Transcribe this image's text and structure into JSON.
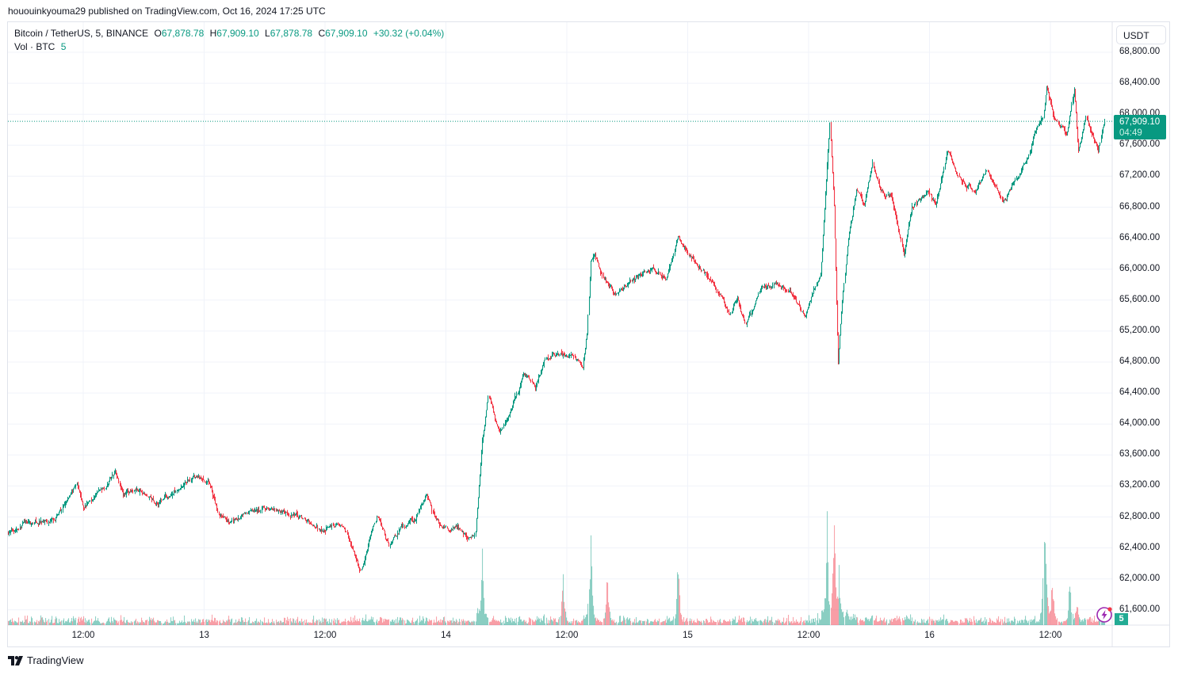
{
  "publisher_line": "hououinkyouma29 published on TradingView.com, Oct 16, 2024 17:25 UTC",
  "legend": {
    "symbol": "Bitcoin / TetherUS, 5, BINANCE",
    "open_prefix": "O",
    "open": "67,878.78",
    "high_prefix": "H",
    "high": "67,909.10",
    "low_prefix": "L",
    "low": "67,878.78",
    "close_prefix": "C",
    "close": "67,909.10",
    "change": "+30.32 (+0.04%)",
    "volume_label": "Vol · BTC",
    "volume_value": "5"
  },
  "currency_button": "USDT",
  "last_price": {
    "price": "67,909.10",
    "countdown": "04:49"
  },
  "volume_badge": "5",
  "footer_logo": "TradingView",
  "colors": {
    "up": "#089981",
    "down": "#f23645",
    "accent": "#089981",
    "grid": "#f0f3fa"
  },
  "icons": {
    "alert": "lightning-bolt-icon",
    "logo": "tradingview-logo-icon"
  },
  "chart_data": {
    "type": "candlestick",
    "interval_minutes": 5,
    "y_ticks": [
      "68,800.00",
      "68,400.00",
      "68,000.00",
      "67,600.00",
      "67,200.00",
      "66,800.00",
      "66,400.00",
      "66,000.00",
      "65,600.00",
      "65,200.00",
      "64,800.00",
      "64,400.00",
      "64,000.00",
      "63,600.00",
      "63,200.00",
      "62,800.00",
      "62,400.00",
      "62,000.00",
      "61,600.00"
    ],
    "ylim": [
      61600,
      68800
    ],
    "x_ticks": [
      {
        "label": "12:00",
        "time": "10-12 12:00"
      },
      {
        "label": "13",
        "time": "10-13 00:00"
      },
      {
        "label": "12:00",
        "time": "10-13 12:00"
      },
      {
        "label": "14",
        "time": "10-14 00:00"
      },
      {
        "label": "12:00",
        "time": "10-14 12:00"
      },
      {
        "label": "15",
        "time": "10-15 00:00"
      },
      {
        "label": "12:00",
        "time": "10-15 12:00"
      },
      {
        "label": "16",
        "time": "10-16 00:00"
      },
      {
        "label": "12:00",
        "time": "10-16 12:00"
      }
    ],
    "last_price": 67909.1,
    "price_path": [
      [
        "10-12 04:30",
        62600
      ],
      [
        "10-12 06:05",
        62723
      ],
      [
        "10-12 08:30",
        62723
      ],
      [
        "10-12 10:00",
        62928
      ],
      [
        "10-12 11:20",
        63214
      ],
      [
        "10-12 12:00",
        62928
      ],
      [
        "10-12 13:10",
        63081
      ],
      [
        "10-12 14:20",
        63235
      ],
      [
        "10-12 15:10",
        63419
      ],
      [
        "10-12 15:55",
        63133
      ],
      [
        "10-12 17:30",
        63133
      ],
      [
        "10-12 19:05",
        62979
      ],
      [
        "10-12 20:40",
        63081
      ],
      [
        "10-12 21:50",
        63235
      ],
      [
        "10-12 23:15",
        63317
      ],
      [
        "10-13 00:35",
        63184
      ],
      [
        "10-13 01:25",
        62826
      ],
      [
        "10-13 02:35",
        62723
      ],
      [
        "10-13 04:10",
        62826
      ],
      [
        "10-13 06:05",
        62928
      ],
      [
        "10-13 08:05",
        62846
      ],
      [
        "10-13 09:40",
        62775
      ],
      [
        "10-13 11:35",
        62621
      ],
      [
        "10-13 13:10",
        62723
      ],
      [
        "10-13 14:20",
        62519
      ],
      [
        "10-13 15:30",
        62110
      ],
      [
        "10-13 17:05",
        62826
      ],
      [
        "10-13 18:20",
        62417
      ],
      [
        "10-13 19:30",
        62642
      ],
      [
        "10-13 20:40",
        62723
      ],
      [
        "10-13 22:05",
        63051
      ],
      [
        "10-13 23:00",
        62723
      ],
      [
        "10-14 00:10",
        62621
      ],
      [
        "10-14 01:00",
        62723
      ],
      [
        "10-14 02:10",
        62519
      ],
      [
        "10-14 02:55",
        62621
      ],
      [
        "10-14 03:35",
        63746
      ],
      [
        "10-14 04:10",
        64360
      ],
      [
        "10-14 05:20",
        63900
      ],
      [
        "10-14 06:30",
        64156
      ],
      [
        "10-14 07:40",
        64667
      ],
      [
        "10-14 08:50",
        64463
      ],
      [
        "10-14 10:00",
        64872
      ],
      [
        "10-14 11:15",
        64923
      ],
      [
        "10-14 12:25",
        64872
      ],
      [
        "10-14 13:35",
        64718
      ],
      [
        "10-14 14:00",
        65179
      ],
      [
        "10-14 14:20",
        66099
      ],
      [
        "10-14 14:45",
        66202
      ],
      [
        "10-14 15:30",
        65895
      ],
      [
        "10-14 16:45",
        65690
      ],
      [
        "10-14 17:55",
        65792
      ],
      [
        "10-14 19:30",
        65946
      ],
      [
        "10-14 20:40",
        65997
      ],
      [
        "10-14 21:50",
        65895
      ],
      [
        "10-14 23:00",
        66406
      ],
      [
        "10-15 00:10",
        66202
      ],
      [
        "10-15 01:45",
        65946
      ],
      [
        "10-15 03:20",
        65639
      ],
      [
        "10-15 04:10",
        65383
      ],
      [
        "10-15 04:55",
        65639
      ],
      [
        "10-15 05:45",
        65281
      ],
      [
        "10-15 06:30",
        65486
      ],
      [
        "10-15 07:15",
        65792
      ],
      [
        "10-15 08:50",
        65792
      ],
      [
        "10-15 10:25",
        65690
      ],
      [
        "10-15 11:35",
        65383
      ],
      [
        "10-15 12:25",
        65690
      ],
      [
        "10-15 13:10",
        65946
      ],
      [
        "10-15 13:35",
        66815
      ],
      [
        "10-15 14:05",
        67890
      ],
      [
        "10-15 14:30",
        66815
      ],
      [
        "10-15 14:55",
        64820
      ],
      [
        "10-15 15:20",
        65588
      ],
      [
        "10-15 15:55",
        66406
      ],
      [
        "10-15 16:45",
        67020
      ],
      [
        "10-15 17:30",
        66815
      ],
      [
        "10-15 18:20",
        67327
      ],
      [
        "10-15 19:05",
        67020
      ],
      [
        "10-15 20:15",
        66918
      ],
      [
        "10-15 21:25",
        66202
      ],
      [
        "10-15 22:15",
        66815
      ],
      [
        "10-15 23:50",
        67020
      ],
      [
        "10-16 00:35",
        66815
      ],
      [
        "10-16 01:45",
        67531
      ],
      [
        "10-16 02:55",
        67174
      ],
      [
        "10-16 04:30",
        67020
      ],
      [
        "10-16 05:45",
        67276
      ],
      [
        "10-16 07:15",
        66866
      ],
      [
        "10-16 08:30",
        67122
      ],
      [
        "10-16 09:40",
        67429
      ],
      [
        "10-16 10:25",
        67736
      ],
      [
        "10-16 11:15",
        67941
      ],
      [
        "10-16 11:35",
        68350
      ],
      [
        "10-16 12:25",
        67941
      ],
      [
        "10-16 13:35",
        67736
      ],
      [
        "10-16 14:20",
        68299
      ],
      [
        "10-16 14:45",
        67531
      ],
      [
        "10-16 15:30",
        67941
      ],
      [
        "10-16 16:45",
        67583
      ],
      [
        "10-16 17:20",
        67909.1
      ]
    ],
    "volume_unit": "BTC",
    "volume_spikes": [
      [
        "10-14 03:35",
        500
      ],
      [
        "10-14 11:35",
        475
      ],
      [
        "10-14 14:20",
        650
      ],
      [
        "10-14 16:00",
        450
      ],
      [
        "10-14 23:00",
        575
      ],
      [
        "10-15 13:50",
        800
      ],
      [
        "10-15 14:30",
        950
      ],
      [
        "10-15 15:00",
        550
      ],
      [
        "10-16 11:25",
        900
      ],
      [
        "10-16 13:55",
        350
      ],
      [
        "10-16 12:10",
        420
      ]
    ]
  }
}
